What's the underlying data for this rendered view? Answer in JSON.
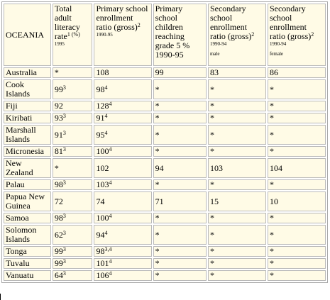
{
  "header": {
    "region": "OCEANIA",
    "cols": [
      {
        "text": "Total adult literacy rate",
        "sup": "1 (%)",
        "years": "1995",
        "note": ""
      },
      {
        "text": "Primary school enrollment ratio (gross)",
        "sup": "2",
        "years": "1990-95",
        "note": ""
      },
      {
        "text": "Primary school children reaching grade 5 %",
        "sup": "",
        "years": "",
        "note": "1990-95"
      },
      {
        "text": "Secondary school enrollment ratio (gross)",
        "sup": "2",
        "years": "1990-94",
        "note": "male"
      },
      {
        "text": "Secondary school enrollment ratio (gross)",
        "sup": "2",
        "years": "1990-94",
        "note": "female"
      }
    ]
  },
  "rows": [
    {
      "country": "Australia",
      "cells": [
        {
          "v": "*",
          "s": ""
        },
        {
          "v": "108",
          "s": ""
        },
        {
          "v": "99",
          "s": ""
        },
        {
          "v": "83",
          "s": ""
        },
        {
          "v": "86",
          "s": ""
        }
      ]
    },
    {
      "country": "Cook Islands",
      "cells": [
        {
          "v": "99",
          "s": "3"
        },
        {
          "v": "98",
          "s": "4"
        },
        {
          "v": "*",
          "s": ""
        },
        {
          "v": "*",
          "s": ""
        },
        {
          "v": "*",
          "s": ""
        }
      ]
    },
    {
      "country": "Fiji",
      "cells": [
        {
          "v": "92",
          "s": ""
        },
        {
          "v": "128",
          "s": "4"
        },
        {
          "v": "*",
          "s": ""
        },
        {
          "v": "*",
          "s": ""
        },
        {
          "v": "*",
          "s": ""
        }
      ]
    },
    {
      "country": "Kiribati",
      "cells": [
        {
          "v": "93",
          "s": "3"
        },
        {
          "v": "91",
          "s": "4"
        },
        {
          "v": "*",
          "s": ""
        },
        {
          "v": "*",
          "s": ""
        },
        {
          "v": "*",
          "s": ""
        }
      ]
    },
    {
      "country": "Marshall Islands",
      "cells": [
        {
          "v": "91",
          "s": "3"
        },
        {
          "v": "95",
          "s": "4"
        },
        {
          "v": "*",
          "s": ""
        },
        {
          "v": "*",
          "s": ""
        },
        {
          "v": "*",
          "s": ""
        }
      ]
    },
    {
      "country": "Micronesia",
      "cells": [
        {
          "v": "81",
          "s": "3"
        },
        {
          "v": "100",
          "s": "4"
        },
        {
          "v": "*",
          "s": ""
        },
        {
          "v": "*",
          "s": ""
        },
        {
          "v": "*",
          "s": ""
        }
      ]
    },
    {
      "country": "New Zealand",
      "cells": [
        {
          "v": "*",
          "s": ""
        },
        {
          "v": "102",
          "s": ""
        },
        {
          "v": "94",
          "s": ""
        },
        {
          "v": "103",
          "s": ""
        },
        {
          "v": "104",
          "s": ""
        }
      ]
    },
    {
      "country": "Palau",
      "cells": [
        {
          "v": "98",
          "s": "3"
        },
        {
          "v": "103",
          "s": "4"
        },
        {
          "v": "*",
          "s": ""
        },
        {
          "v": "*",
          "s": ""
        },
        {
          "v": "*",
          "s": ""
        }
      ]
    },
    {
      "country": "Papua New Guinea",
      "cells": [
        {
          "v": "72",
          "s": ""
        },
        {
          "v": "74",
          "s": ""
        },
        {
          "v": "71",
          "s": ""
        },
        {
          "v": "15",
          "s": ""
        },
        {
          "v": "10",
          "s": ""
        }
      ]
    },
    {
      "country": "Samoa",
      "cells": [
        {
          "v": "98",
          "s": "3"
        },
        {
          "v": "100",
          "s": "4"
        },
        {
          "v": "*",
          "s": ""
        },
        {
          "v": "*",
          "s": ""
        },
        {
          "v": "*",
          "s": ""
        }
      ]
    },
    {
      "country": "Solomon Islands",
      "cells": [
        {
          "v": "62",
          "s": "3"
        },
        {
          "v": "94",
          "s": "4"
        },
        {
          "v": "*",
          "s": ""
        },
        {
          "v": "*",
          "s": ""
        },
        {
          "v": "*",
          "s": ""
        }
      ]
    },
    {
      "country": "Tonga",
      "cells": [
        {
          "v": "99",
          "s": "3"
        },
        {
          "v": "98",
          "s": "3,4"
        },
        {
          "v": "*",
          "s": ""
        },
        {
          "v": "*",
          "s": ""
        },
        {
          "v": "*",
          "s": ""
        }
      ]
    },
    {
      "country": "Tuvalu",
      "cells": [
        {
          "v": "99",
          "s": "3"
        },
        {
          "v": "101",
          "s": "4"
        },
        {
          "v": "*",
          "s": ""
        },
        {
          "v": "*",
          "s": ""
        },
        {
          "v": "*",
          "s": ""
        }
      ]
    },
    {
      "country": "Vanuatu",
      "cells": [
        {
          "v": "64",
          "s": "3"
        },
        {
          "v": "106",
          "s": "4"
        },
        {
          "v": "*",
          "s": ""
        },
        {
          "v": "*",
          "s": ""
        },
        {
          "v": "*",
          "s": ""
        }
      ]
    }
  ]
}
